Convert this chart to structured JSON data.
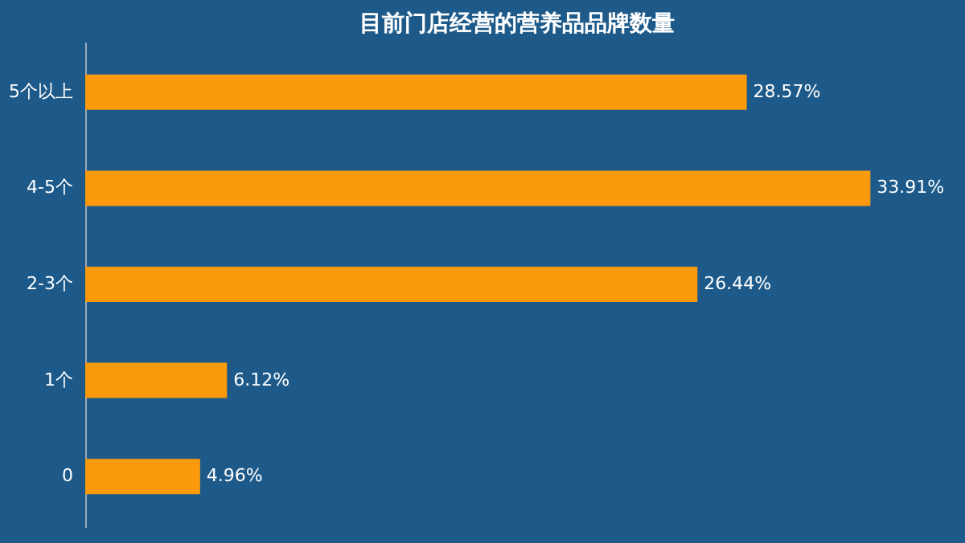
{
  "chart_data": {
    "type": "bar",
    "title": "目前门店经营的营养品品牌数量",
    "orientation": "horizontal",
    "categories": [
      "5个以上",
      "4-5个",
      "2-3个",
      "1个",
      "0"
    ],
    "values": [
      28.57,
      33.91,
      26.44,
      6.12,
      4.96
    ],
    "value_labels": [
      "28.57%",
      "33.91%",
      "26.44%",
      "6.12%",
      "4.96%"
    ],
    "color": "#fb9a0c",
    "grid": false
  }
}
